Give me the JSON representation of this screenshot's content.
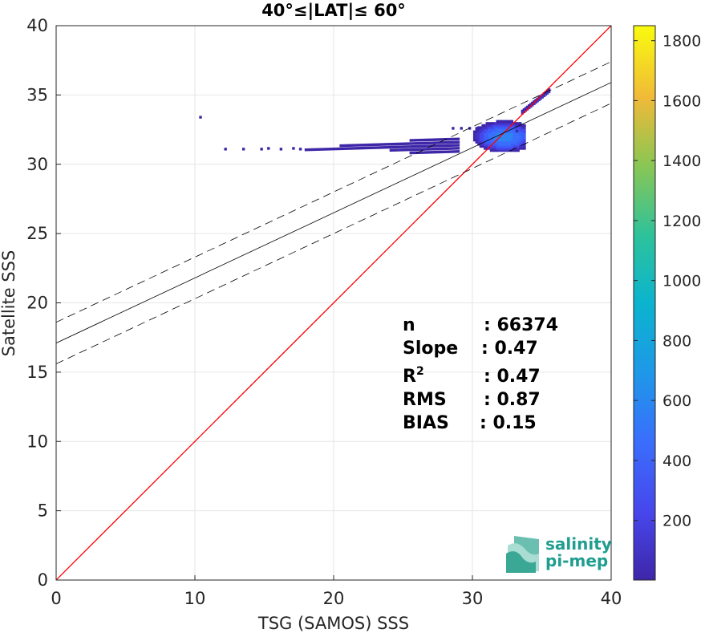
{
  "chart_data": {
    "type": "heatmap",
    "title": "40°≤|LAT|≤ 60°",
    "xlabel": "TSG (SAMOS) SSS",
    "ylabel": "Satellite SSS",
    "xlim": [
      0,
      40
    ],
    "ylim": [
      0,
      40
    ],
    "x_ticks": [
      "0",
      "10",
      "20",
      "30",
      "40"
    ],
    "y_ticks": [
      "0",
      "5",
      "10",
      "15",
      "20",
      "25",
      "30",
      "35",
      "40"
    ],
    "grid": true,
    "colorbar": {
      "min": 1,
      "max": 1850,
      "ticks": [
        "200",
        "400",
        "600",
        "800",
        "1000",
        "1200",
        "1400",
        "1600",
        "1800"
      ],
      "colormap": "parula"
    },
    "identity_line": {
      "from": [
        0,
        0
      ],
      "to": [
        40,
        40
      ],
      "color": "#ff0000"
    },
    "regression_line": {
      "intercept": 17.1,
      "slope": 0.47,
      "color": "#000000"
    },
    "confidence_band_offset": 1.5,
    "density_region": {
      "x_range": [
        12,
        36
      ],
      "y_range": [
        30.5,
        35.5
      ]
    },
    "stats": [
      {
        "label": "n",
        "value": ": 66374"
      },
      {
        "label": "Slope",
        "value": ": 0.47"
      },
      {
        "label": "R",
        "sup": "2",
        "value": ": 0.47"
      },
      {
        "label": "RMS",
        "value": ": 0.87"
      },
      {
        "label": "BIAS",
        "value": ": 0.15"
      }
    ],
    "logo": {
      "line1": "salinity",
      "line2": "pi-mep"
    }
  }
}
